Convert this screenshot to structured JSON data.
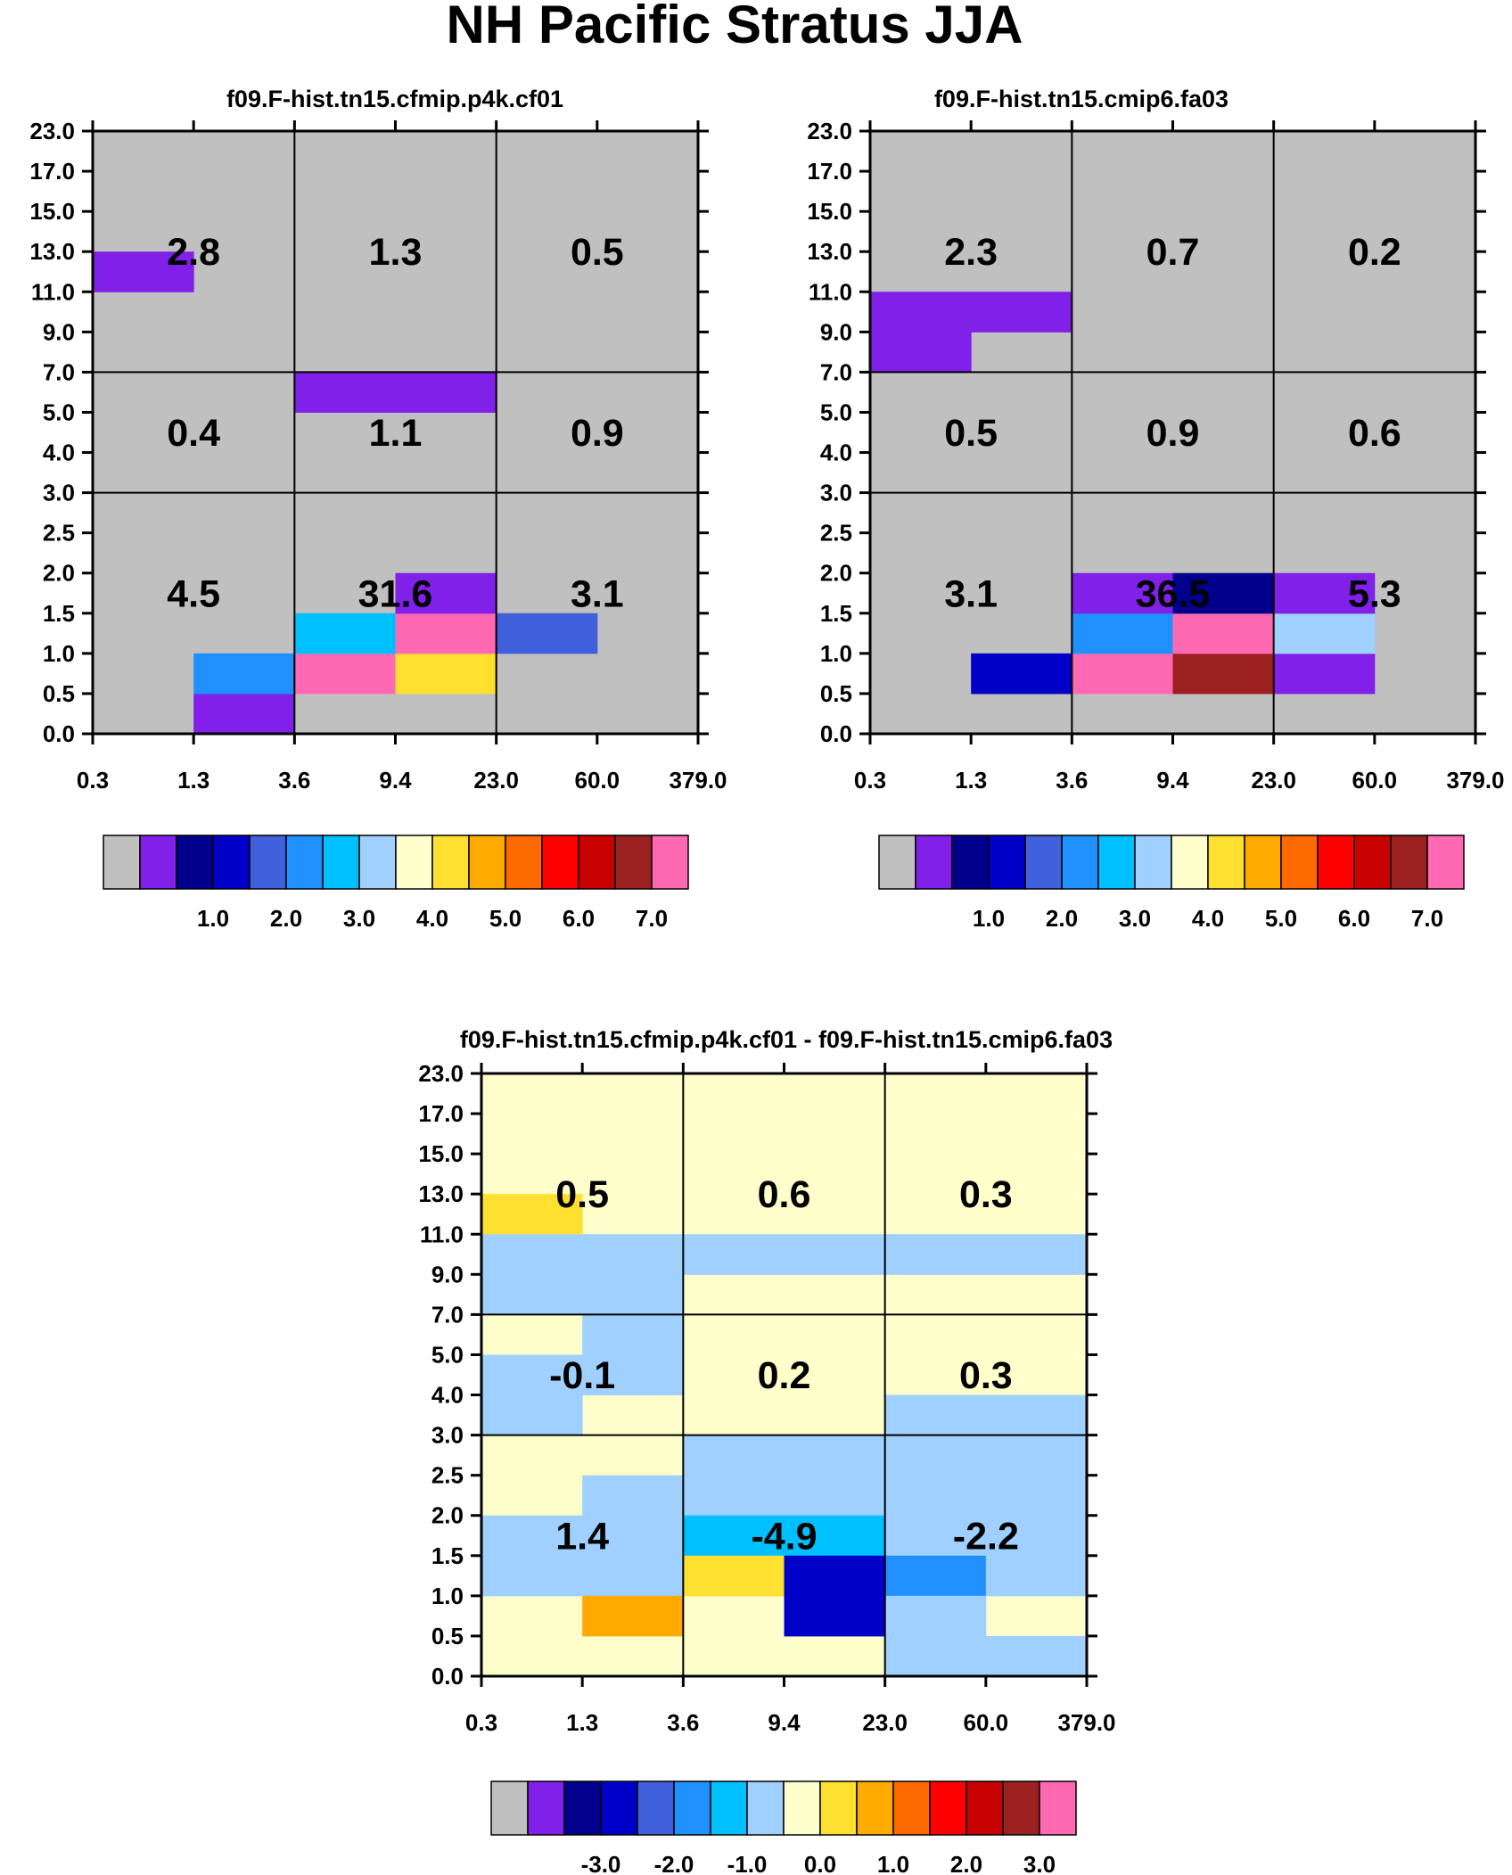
{
  "title": "NH Pacific Stratus JJA",
  "chart_data": [
    {
      "type": "heatmap",
      "title": "f09.F-hist.tn15.cfmip.p4k.cf01",
      "y_tick_labels": [
        "0.0",
        "0.5",
        "1.0",
        "1.5",
        "2.0",
        "2.5",
        "3.0",
        "4.0",
        "5.0",
        "7.0",
        "9.0",
        "11.0",
        "13.0",
        "15.0",
        "17.0",
        "23.0"
      ],
      "x_tick_labels": [
        "0.3",
        "1.3",
        "3.6",
        "9.4",
        "23.0",
        "60.0",
        "379.0"
      ],
      "cells": [
        {
          "x": 0,
          "y": 11,
          "w": 1,
          "h": 1,
          "c": 1
        },
        {
          "x": 2,
          "y": 8,
          "w": 2,
          "h": 1,
          "c": 1
        },
        {
          "x": 1,
          "y": 0,
          "w": 1,
          "h": 1,
          "c": 1
        },
        {
          "x": 1,
          "y": 1,
          "w": 1,
          "h": 1,
          "c": 5
        },
        {
          "x": 2,
          "y": 1,
          "w": 1,
          "h": 1,
          "c": 15
        },
        {
          "x": 2,
          "y": 2,
          "w": 1,
          "h": 1,
          "c": 6
        },
        {
          "x": 3,
          "y": 1,
          "w": 1,
          "h": 1,
          "c": 9
        },
        {
          "x": 3,
          "y": 2,
          "w": 1,
          "h": 1,
          "c": 15
        },
        {
          "x": 3,
          "y": 3,
          "w": 1,
          "h": 1,
          "c": 1
        },
        {
          "x": 4,
          "y": 2,
          "w": 1,
          "h": 1,
          "c": 4
        }
      ],
      "box_values": [
        [
          "4.5",
          "31.6",
          "3.1"
        ],
        [
          "0.4",
          "1.1",
          "0.9"
        ],
        [
          "2.8",
          "1.3",
          "0.5"
        ]
      ],
      "colorbar_labels": [
        "1.0",
        "2.0",
        "3.0",
        "4.0",
        "5.0",
        "6.0",
        "7.0"
      ]
    },
    {
      "type": "heatmap",
      "title": "f09.F-hist.tn15.cmip6.fa03",
      "y_tick_labels": [
        "0.0",
        "0.5",
        "1.0",
        "1.5",
        "2.0",
        "2.5",
        "3.0",
        "4.0",
        "5.0",
        "7.0",
        "9.0",
        "11.0",
        "13.0",
        "15.0",
        "17.0",
        "23.0"
      ],
      "x_tick_labels": [
        "0.3",
        "1.3",
        "3.6",
        "9.4",
        "23.0",
        "60.0",
        "379.0"
      ],
      "cells": [
        {
          "x": 0,
          "y": 10,
          "w": 2,
          "h": 1,
          "c": 1
        },
        {
          "x": 0,
          "y": 9,
          "w": 1,
          "h": 1,
          "c": 1
        },
        {
          "x": 1,
          "y": 1,
          "w": 1,
          "h": 1,
          "c": 3
        },
        {
          "x": 2,
          "y": 1,
          "w": 1,
          "h": 1,
          "c": 15
        },
        {
          "x": 2,
          "y": 2,
          "w": 1,
          "h": 1,
          "c": 5
        },
        {
          "x": 2,
          "y": 3,
          "w": 1,
          "h": 1,
          "c": 1
        },
        {
          "x": 3,
          "y": 1,
          "w": 1,
          "h": 1,
          "c": 14
        },
        {
          "x": 3,
          "y": 2,
          "w": 1,
          "h": 1,
          "c": 15
        },
        {
          "x": 3,
          "y": 3,
          "w": 1,
          "h": 1,
          "c": 2
        },
        {
          "x": 4,
          "y": 1,
          "w": 1,
          "h": 1,
          "c": 1
        },
        {
          "x": 4,
          "y": 2,
          "w": 1,
          "h": 1,
          "c": 7
        },
        {
          "x": 4,
          "y": 3,
          "w": 1,
          "h": 1,
          "c": 1
        }
      ],
      "box_values": [
        [
          "3.1",
          "36.5",
          "5.3"
        ],
        [
          "0.5",
          "0.9",
          "0.6"
        ],
        [
          "2.3",
          "0.7",
          "0.2"
        ]
      ],
      "colorbar_labels": [
        "1.0",
        "2.0",
        "3.0",
        "4.0",
        "5.0",
        "6.0",
        "7.0"
      ]
    },
    {
      "type": "heatmap",
      "title": "f09.F-hist.tn15.cfmip.p4k.cf01 - f09.F-hist.tn15.cmip6.fa03",
      "y_tick_labels": [
        "0.0",
        "0.5",
        "1.0",
        "1.5",
        "2.0",
        "2.5",
        "3.0",
        "4.0",
        "5.0",
        "7.0",
        "9.0",
        "11.0",
        "13.0",
        "15.0",
        "17.0",
        "23.0"
      ],
      "x_tick_labels": [
        "0.3",
        "1.3",
        "3.6",
        "9.4",
        "23.0",
        "60.0",
        "379.0"
      ],
      "background": 8,
      "cells": [
        {
          "x": 0,
          "y": 11,
          "w": 1,
          "h": 1,
          "c": 9
        },
        {
          "x": 0,
          "y": 9,
          "w": 2,
          "h": 2,
          "c": 7
        },
        {
          "x": 2,
          "y": 10,
          "w": 4,
          "h": 1,
          "c": 7
        },
        {
          "x": 1,
          "y": 7,
          "w": 1,
          "h": 2,
          "c": 7
        },
        {
          "x": 0,
          "y": 7,
          "w": 1,
          "h": 1,
          "c": 7
        },
        {
          "x": 0,
          "y": 6,
          "w": 1,
          "h": 1,
          "c": 7
        },
        {
          "x": 4,
          "y": 6,
          "w": 2,
          "h": 1,
          "c": 7
        },
        {
          "x": 1,
          "y": 4,
          "w": 1,
          "h": 1,
          "c": 7
        },
        {
          "x": 0,
          "y": 2,
          "w": 2,
          "h": 2,
          "c": 7
        },
        {
          "x": 1,
          "y": 1,
          "w": 1,
          "h": 1,
          "c": 10
        },
        {
          "x": 2,
          "y": 4,
          "w": 4,
          "h": 2,
          "c": 7
        },
        {
          "x": 2,
          "y": 3,
          "w": 2,
          "h": 1,
          "c": 6
        },
        {
          "x": 2,
          "y": 2,
          "w": 1,
          "h": 1,
          "c": 9
        },
        {
          "x": 3,
          "y": 1,
          "w": 1,
          "h": 2,
          "c": 3
        },
        {
          "x": 4,
          "y": 3,
          "w": 2,
          "h": 1,
          "c": 7
        },
        {
          "x": 4,
          "y": 2,
          "w": 1,
          "h": 1,
          "c": 5
        },
        {
          "x": 5,
          "y": 2,
          "w": 1,
          "h": 1,
          "c": 7
        },
        {
          "x": 4,
          "y": 0,
          "w": 1,
          "h": 2,
          "c": 7
        },
        {
          "x": 5,
          "y": 0,
          "w": 1,
          "h": 1,
          "c": 7
        }
      ],
      "box_values": [
        [
          "1.4",
          "-4.9",
          "-2.2"
        ],
        [
          "-0.1",
          "0.2",
          "0.3"
        ],
        [
          "0.5",
          "0.6",
          "0.3"
        ]
      ],
      "colorbar_labels": [
        "-3.0",
        "-2.0",
        "-1.0",
        "0.0",
        "1.0",
        "2.0",
        "3.0"
      ]
    }
  ],
  "palette": [
    "#c0c0c0",
    "#8020e8",
    "#00008c",
    "#0000c8",
    "#4060dc",
    "#2090ff",
    "#00bfff",
    "#a0d0ff",
    "#ffffcc",
    "#ffe030",
    "#ffaa00",
    "#ff6a00",
    "#ff0000",
    "#c80000",
    "#9c2020",
    "#ff69b4"
  ]
}
